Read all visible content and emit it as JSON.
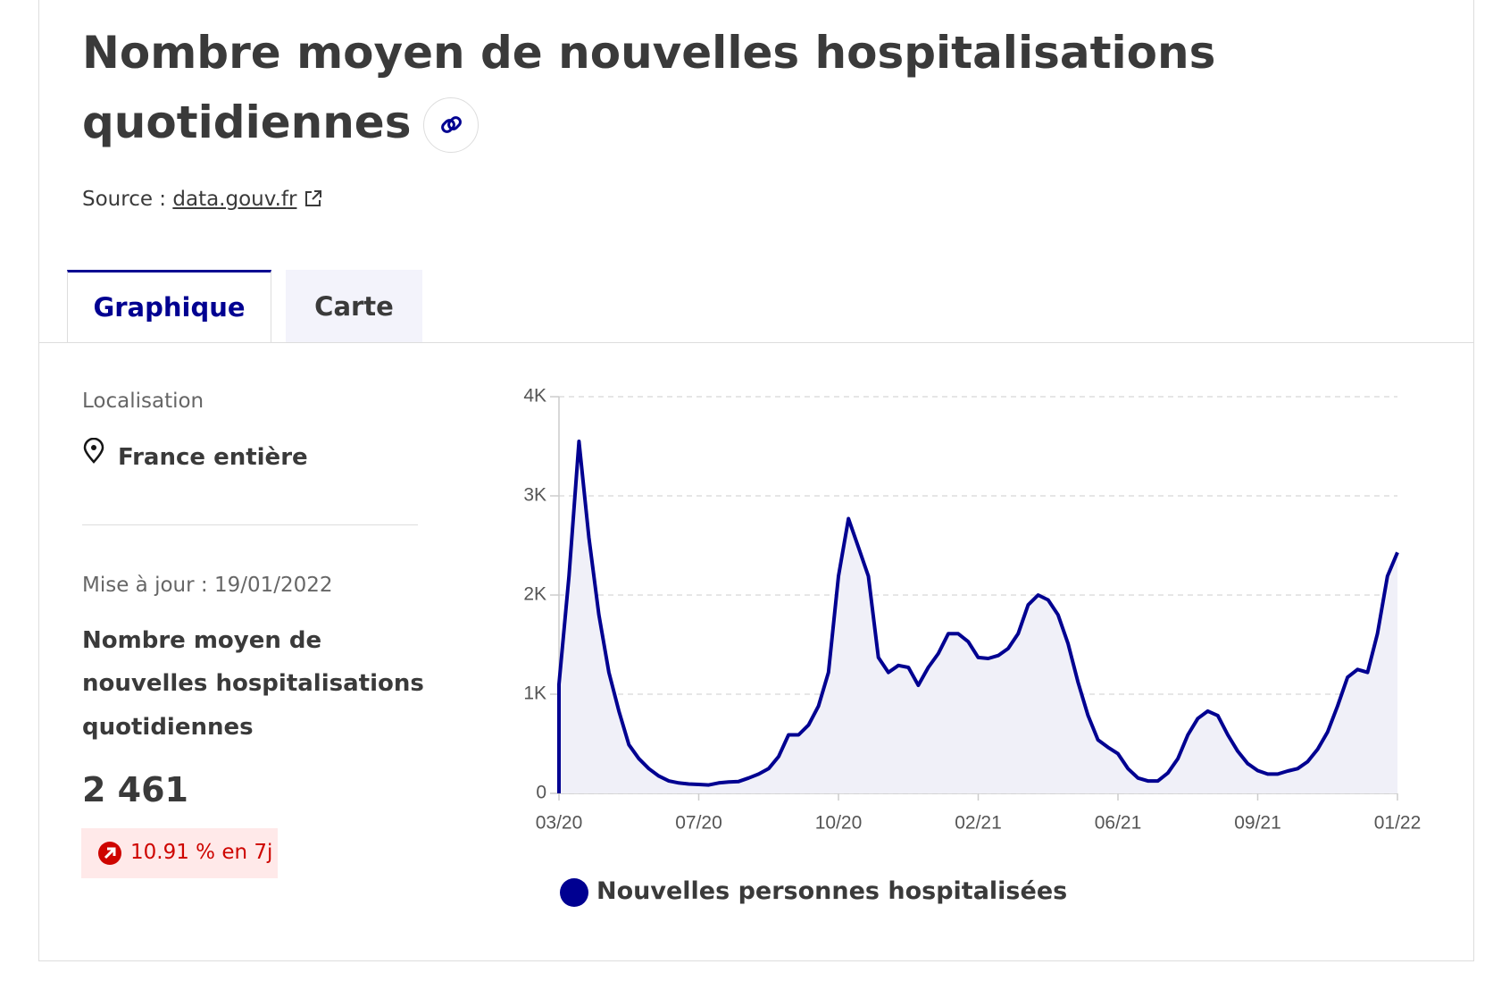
{
  "header": {
    "title_line1": "Nombre moyen de nouvelles hospitalisations",
    "title_line2": "quotidiennes",
    "source_label": "Source :",
    "source_link": "data.gouv.fr"
  },
  "tabs": [
    "Graphique",
    "Carte"
  ],
  "sidebar": {
    "location_label": "Localisation",
    "location": "France entière",
    "updated": "Mise à jour : 19/01/2022",
    "indicator_line1": "Nombre moyen de",
    "indicator_line2": "nouvelles hospitalisations",
    "indicator_line3": "quotidiennes",
    "value": "2 461",
    "change": "10.91 % en 7j"
  },
  "chart_data": {
    "type": "area",
    "categories": [
      "03/20",
      null,
      null,
      null,
      null,
      null,
      null,
      null,
      null,
      null,
      null,
      null,
      null,
      null,
      "07/20",
      null,
      null,
      null,
      null,
      null,
      null,
      null,
      null,
      null,
      null,
      null,
      null,
      null,
      "10/20",
      null,
      null,
      null,
      null,
      null,
      null,
      null,
      null,
      null,
      null,
      null,
      null,
      null,
      "02/21",
      null,
      null,
      null,
      null,
      null,
      null,
      null,
      null,
      null,
      null,
      null,
      null,
      null,
      "06/21",
      null,
      null,
      null,
      null,
      null,
      null,
      null,
      null,
      null,
      null,
      null,
      null,
      null,
      "09/21",
      null,
      null,
      null,
      null,
      null,
      null,
      null,
      null,
      null,
      null,
      null,
      null,
      null,
      "01/22"
    ],
    "series": [
      {
        "name": "Nouvelles personnes hospitalisées",
        "color": "#000091",
        "values": [
          1100,
          2190,
          3550,
          2580,
          1800,
          1220,
          830,
          490,
          350,
          250,
          175,
          125,
          105,
          95,
          90,
          85,
          105,
          115,
          120,
          155,
          195,
          250,
          370,
          590,
          590,
          690,
          880,
          1220,
          2190,
          2770,
          2480,
          2190,
          1370,
          1220,
          1290,
          1270,
          1090,
          1270,
          1410,
          1610,
          1610,
          1530,
          1370,
          1360,
          1390,
          1460,
          1610,
          1900,
          2000,
          1950,
          1800,
          1510,
          1120,
          785,
          540,
          465,
          400,
          250,
          155,
          125,
          125,
          205,
          350,
          590,
          755,
          830,
          785,
          590,
          425,
          300,
          230,
          195,
          195,
          225,
          250,
          320,
          445,
          620,
          880,
          1170,
          1250,
          1220,
          1610,
          2190,
          2430
        ]
      }
    ],
    "ylim": [
      0,
      4000
    ],
    "yticks": [
      0,
      {
        "value": 1000,
        "label": "1K"
      },
      {
        "value": 2000,
        "label": "2K"
      },
      {
        "value": 3000,
        "label": "3K"
      },
      {
        "value": 4000,
        "label": "4K"
      }
    ],
    "grid": true,
    "area_color": "#f0f0f8"
  }
}
